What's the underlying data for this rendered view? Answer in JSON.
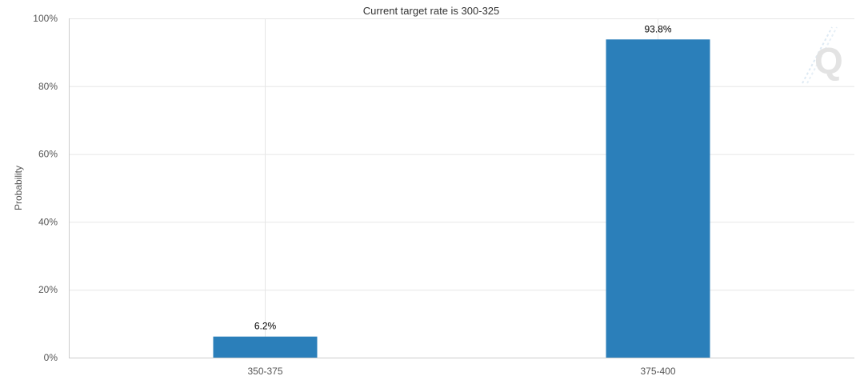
{
  "chart_data": {
    "type": "bar",
    "title": "Current target rate is 300-325",
    "ylabel": "Probability",
    "xlabel": "",
    "categories": [
      "350-375",
      "375-400"
    ],
    "values": [
      6.2,
      93.8
    ],
    "data_labels": [
      "6.2%",
      "93.8%"
    ],
    "ylim": [
      0,
      100
    ],
    "yticks": [
      0,
      20,
      40,
      60,
      80,
      100
    ],
    "ytick_labels": [
      "0%",
      "20%",
      "40%",
      "60%",
      "80%",
      "100%"
    ],
    "grid": true,
    "legend": "none",
    "bar_color": "#2b7fba"
  },
  "watermark": {
    "letter": "Q"
  }
}
